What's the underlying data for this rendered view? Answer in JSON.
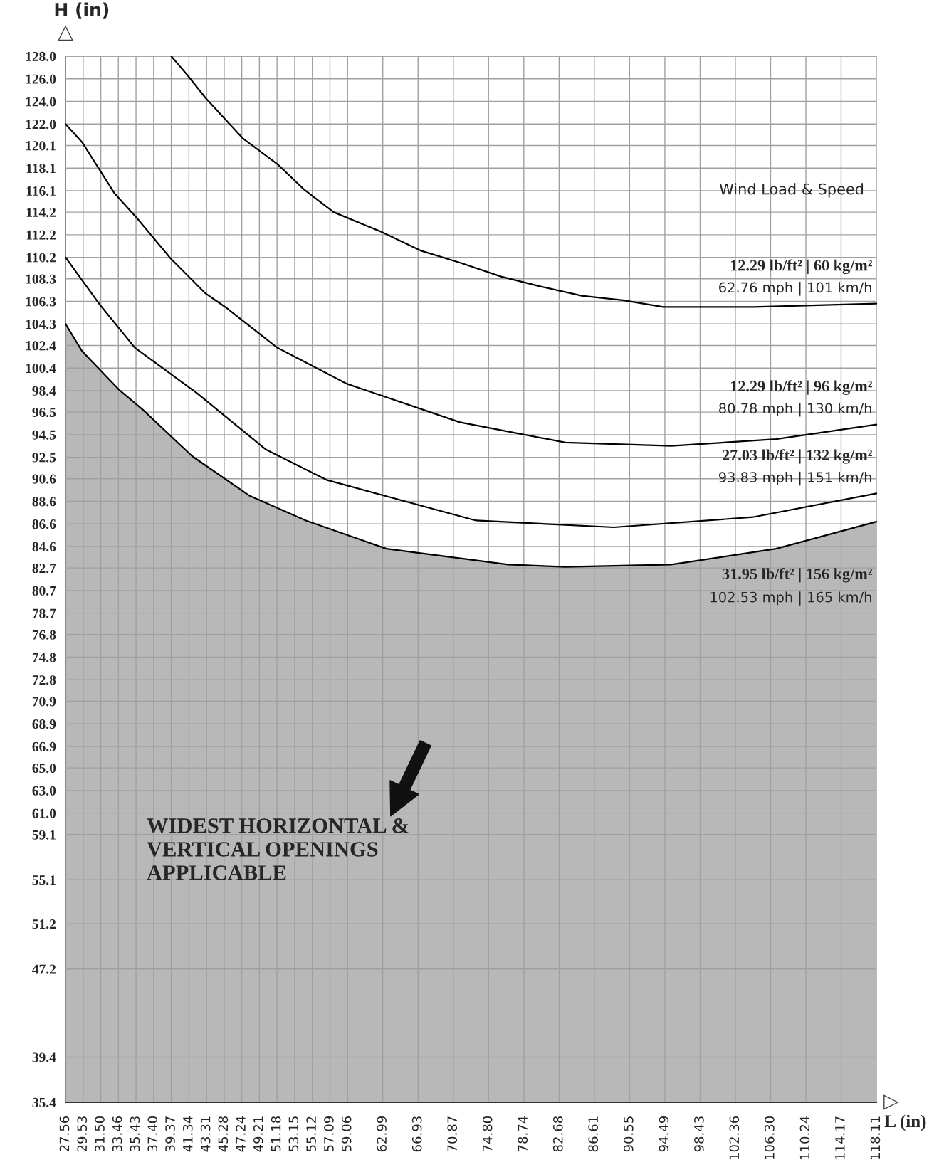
{
  "chart_data": {
    "type": "line",
    "xlabel": "L (in)",
    "ylabel": "H (in)",
    "xlim": [
      27.56,
      118.11
    ],
    "xticks": [
      27.56,
      29.53,
      {
        "value": 31.5,
        "label": "31.50"
      },
      33.46,
      35.43,
      {
        "value": 37.4,
        "label": "37.40"
      },
      39.37,
      41.34,
      43.31,
      45.28,
      47.24,
      49.21,
      51.18,
      53.15,
      55.12,
      57.09,
      59.06,
      62.99,
      66.93,
      70.87,
      {
        "value": 74.8,
        "label": "74.80"
      },
      78.74,
      82.68,
      86.61,
      90.55,
      94.49,
      98.43,
      102.36,
      {
        "value": 106.3,
        "label": "106.30"
      },
      110.24,
      114.17,
      118.11
    ],
    "ylim": [
      35.4,
      128.0
    ],
    "yticks": [
      {
        "value": 128,
        "label": "128.0"
      },
      {
        "value": 126,
        "label": "126.0"
      },
      {
        "value": 124,
        "label": "124.0"
      },
      {
        "value": 122,
        "label": "122.0"
      },
      120.1,
      118.1,
      116.1,
      114.2,
      112.2,
      110.2,
      108.3,
      106.3,
      104.3,
      102.4,
      100.4,
      98.4,
      96.5,
      94.5,
      92.5,
      90.6,
      88.6,
      86.6,
      84.6,
      82.7,
      80.7,
      78.7,
      76.8,
      74.8,
      72.8,
      70.9,
      68.9,
      66.9,
      {
        "value": 65,
        "label": "65.0"
      },
      {
        "value": 63,
        "label": "63.0"
      },
      {
        "value": 61,
        "label": "61.0"
      },
      59.1,
      55.1,
      51.2,
      47.2,
      39.4,
      35.4
    ],
    "grid": true,
    "line_style": "solid",
    "series": [
      {
        "name": "12.29 lb/ft² | 60 kg/m²\n62.76 mph | 101 km/h",
        "color": "#000000",
        "x": [
          39.37,
          41.2,
          43.2,
          47.4,
          51.3,
          54.2,
          57.5,
          62.7,
          67.2,
          71.7,
          76.2,
          80.7,
          85.2,
          89.8,
          94.3,
          104.4,
          118.11
        ],
        "values": [
          128.0,
          126.3,
          124.3,
          120.7,
          118.4,
          116.2,
          114.2,
          112.5,
          110.8,
          109.7,
          108.5,
          107.6,
          106.8,
          106.4,
          105.8,
          105.8,
          106.1
        ]
      },
      {
        "name": "12.29 lb/ft² | 96 kg/m²\n80.78 mph | 130 km/h",
        "color": "#000000",
        "x": [
          27.56,
          29.4,
          33.0,
          35.5,
          39.3,
          43.2,
          45.4,
          51.2,
          59.0,
          71.6,
          83.4,
          95.2,
          106.9,
          118.11
        ],
        "values": [
          122.0,
          120.4,
          115.9,
          113.7,
          110.1,
          107.0,
          105.8,
          102.2,
          99.0,
          95.6,
          93.8,
          93.5,
          94.1,
          95.4
        ]
      },
      {
        "name": "27.03 lb/ft² | 132 kg/m²\n93.83 mph | 151 km/h",
        "color": "#000000",
        "x": [
          27.56,
          31.4,
          35.3,
          42.2,
          49.9,
          56.7,
          73.4,
          88.8,
          104.3,
          118.11
        ],
        "values": [
          110.2,
          106.0,
          102.2,
          98.2,
          93.2,
          90.5,
          86.9,
          86.3,
          87.2,
          89.3
        ]
      },
      {
        "name": "31.95 lb/ft² | 156 kg/m²\n102.53 mph | 165 km/h",
        "type": "area",
        "color": "#b8b8b8",
        "x": [
          27.56,
          29.4,
          33.5,
          36.2,
          41.7,
          48.1,
          54.4,
          63.4,
          77.0,
          83.4,
          95.2,
          106.9,
          118.11
        ],
        "values": [
          104.3,
          101.9,
          98.5,
          96.7,
          92.6,
          89.1,
          86.9,
          84.4,
          83.0,
          82.8,
          83.0,
          84.4,
          86.8
        ]
      }
    ],
    "annotations": [
      "Wind Load & Speed",
      "WIDEST HORIZONTAL &\nVERTICAL OPENINGS\nAPPLICABLE"
    ]
  }
}
